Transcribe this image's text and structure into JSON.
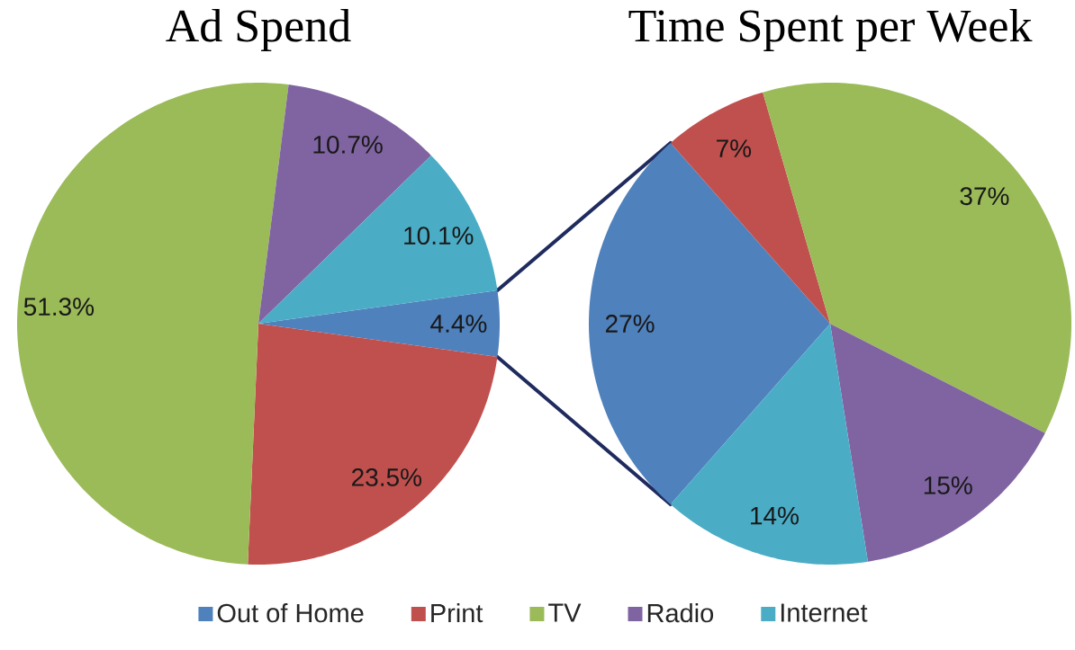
{
  "chart_data": [
    {
      "type": "pie",
      "title": "Ad Spend",
      "categories": [
        "Out of Home",
        "Print",
        "TV",
        "Radio",
        "Internet"
      ],
      "values": [
        4.4,
        23.5,
        51.3,
        10.7,
        10.1
      ],
      "colors": [
        "#4f81bd",
        "#c0504d",
        "#9bbb59",
        "#8064a2",
        "#4bacc6"
      ],
      "value_labels": [
        "4.4%",
        "23.5%",
        "51.3%",
        "10.7%",
        "10.1%"
      ],
      "legend": "bottom"
    },
    {
      "type": "pie",
      "title": "Time Spent per Week",
      "categories": [
        null,
        null,
        null,
        null,
        null
      ],
      "values": [
        27,
        7,
        37,
        15,
        14
      ],
      "colors": [
        "#4f81bd",
        "#c0504d",
        "#9bbb59",
        "#8064a2",
        "#4bacc6"
      ],
      "value_labels": [
        "27%",
        "7%",
        "37%",
        "15%",
        "14%"
      ]
    }
  ]
}
